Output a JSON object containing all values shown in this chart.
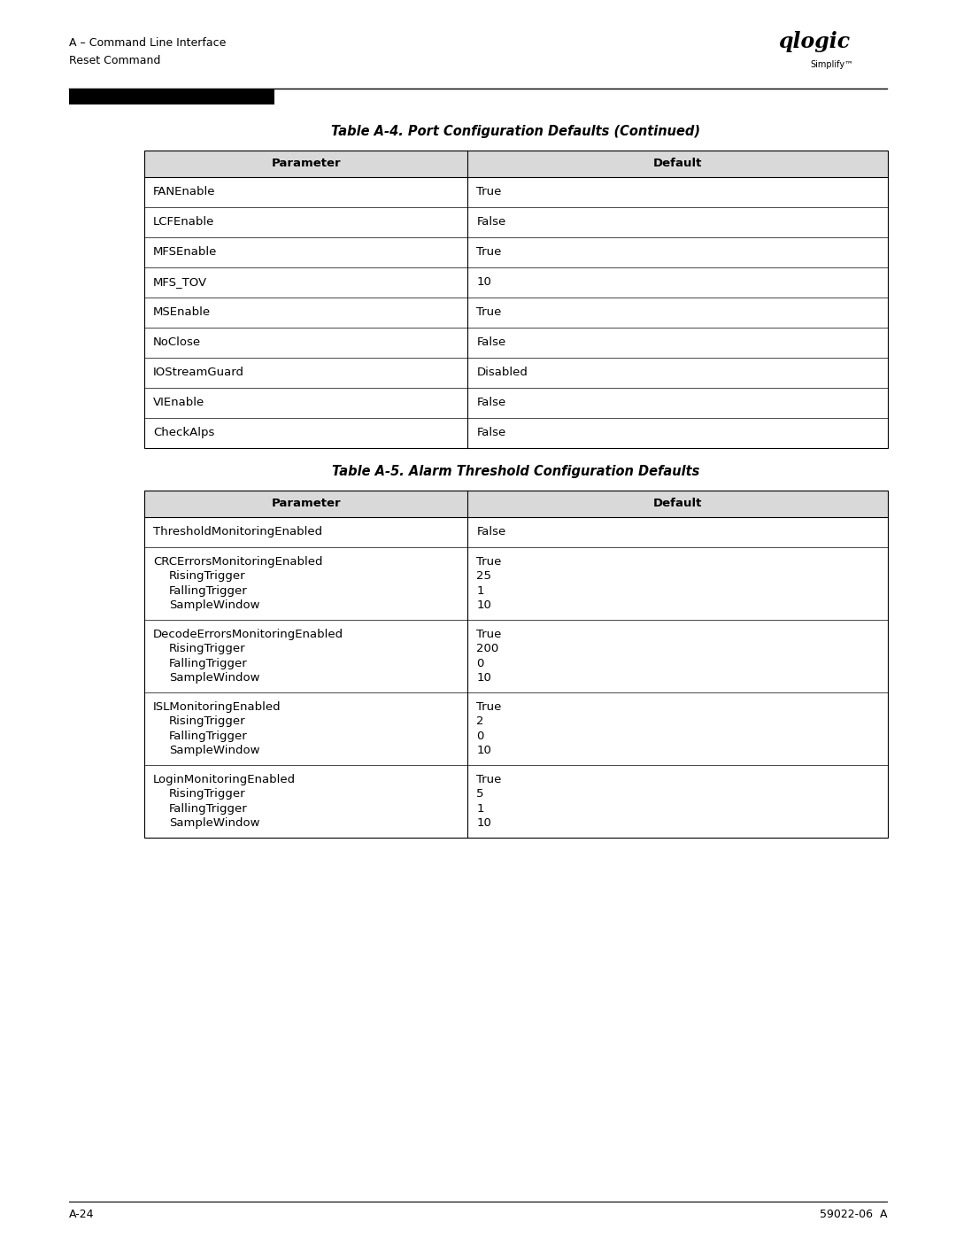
{
  "page_header_line1": "A – Command Line Interface",
  "page_header_line2": "Reset Command",
  "page_footer_left": "A-24",
  "page_footer_right": "59022-06  A",
  "table1_title": "Table A-4. Port Configuration Defaults (Continued)",
  "table1_col_headers": [
    "Parameter",
    "Default"
  ],
  "table1_rows": [
    [
      "FANEnable",
      "True"
    ],
    [
      "LCFEnable",
      "False"
    ],
    [
      "MFSEnable",
      "True"
    ],
    [
      "MFS_TOV",
      "10"
    ],
    [
      "MSEnable",
      "True"
    ],
    [
      "NoClose",
      "False"
    ],
    [
      "IOStreamGuard",
      "Disabled"
    ],
    [
      "VIEnable",
      "False"
    ],
    [
      "CheckAlps",
      "False"
    ]
  ],
  "table2_title": "Table A-5. Alarm Threshold Configuration Defaults",
  "table2_col_headers": [
    "Parameter",
    "Default"
  ],
  "table2_rows_left": [
    "ThresholdMonitoringEnabled",
    "CRCErrorsMonitoringEnabled\n    RisingTrigger\n    FallingTrigger\n    SampleWindow",
    "DecodeErrorsMonitoringEnabled\n    RisingTrigger\n    FallingTrigger\n    SampleWindow",
    "ISLMonitoringEnabled\n    RisingTrigger\n    FallingTrigger\n    SampleWindow",
    "LoginMonitoringEnabled\n    RisingTrigger\n    FallingTrigger\n    SampleWindow"
  ],
  "table2_rows_right": [
    "False",
    "True\n25\n1\n10",
    "True\n200\n0\n10",
    "True\n2\n0\n10",
    "True\n5\n1\n10"
  ],
  "bg_color": "#ffffff",
  "text_color": "#000000",
  "header_bg": "#d9d9d9",
  "table_border_color": "#000000",
  "font_size_header": 9.5,
  "font_size_body": 9.5,
  "font_size_title": 10.5,
  "font_size_page_text": 9.0
}
